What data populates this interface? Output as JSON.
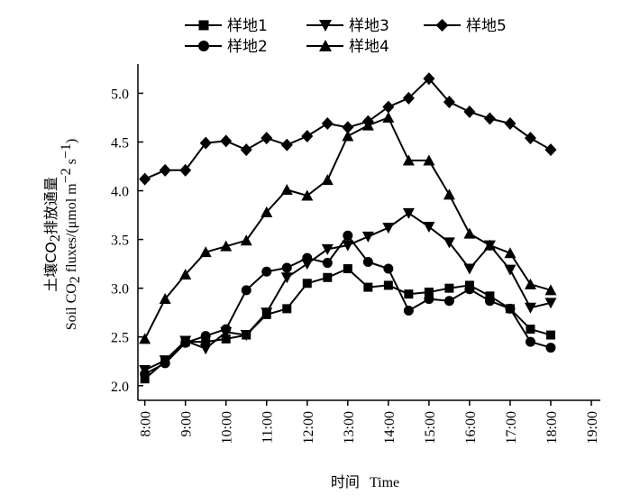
{
  "chart_data": {
    "type": "line",
    "xlabel_cn": "时间",
    "xlabel_en": "Time",
    "ylabel_cn_1": "土壤CO",
    "ylabel_cn_sub": "2",
    "ylabel_cn_2": "排放通量",
    "ylabel_en_1": "Soil CO",
    "ylabel_en_sub": "2",
    "ylabel_en_2": " fluxes/(μmol m",
    "ylabel_en_sup1": "−2",
    "ylabel_en_3": " s",
    "ylabel_en_sup2": "−1",
    "ylabel_en_4": ")",
    "xlim": [
      7.83,
      19.0
    ],
    "ylim": [
      1.85,
      5.3
    ],
    "x_ticks": [
      "8:00",
      "9:00",
      "10:00",
      "11:00",
      "12:00",
      "13:00",
      "14:00",
      "15:00",
      "16:00",
      "17:00",
      "18:00",
      "19:00"
    ],
    "y_ticks": [
      "2.0",
      "2.5",
      "3.0",
      "3.5",
      "4.0",
      "4.5",
      "5.0"
    ],
    "x": [
      "8:00",
      "8:30",
      "9:00",
      "9:30",
      "10:00",
      "10:30",
      "11:00",
      "11:30",
      "12:00",
      "12:30",
      "13:00",
      "13:30",
      "14:00",
      "14:30",
      "15:00",
      "15:30",
      "16:00",
      "16:30",
      "17:00",
      "17:30",
      "18:00"
    ],
    "series": [
      {
        "name": "样地1",
        "marker": "square",
        "values": [
          2.07,
          2.25,
          2.45,
          2.45,
          2.48,
          2.52,
          2.73,
          2.79,
          3.05,
          3.11,
          3.2,
          3.01,
          3.03,
          2.94,
          2.96,
          3.0,
          3.03,
          2.92,
          2.79,
          2.58,
          2.52
        ]
      },
      {
        "name": "样地2",
        "marker": "circle",
        "values": [
          2.12,
          2.23,
          2.44,
          2.51,
          2.58,
          2.98,
          3.17,
          3.21,
          3.31,
          3.26,
          3.54,
          3.27,
          3.2,
          2.77,
          2.89,
          2.87,
          2.99,
          2.87,
          2.79,
          2.45,
          2.39
        ]
      },
      {
        "name": "样地3",
        "marker": "triangle-down",
        "values": [
          2.16,
          2.26,
          2.46,
          2.38,
          2.55,
          2.52,
          2.75,
          3.11,
          3.25,
          3.4,
          3.44,
          3.53,
          3.62,
          3.77,
          3.63,
          3.47,
          3.2,
          3.44,
          3.19,
          2.8,
          2.85
        ]
      },
      {
        "name": "样地4",
        "marker": "triangle-up",
        "values": [
          2.48,
          2.89,
          3.14,
          3.37,
          3.43,
          3.49,
          3.78,
          4.01,
          3.95,
          4.11,
          4.56,
          4.67,
          4.75,
          4.31,
          4.31,
          3.96,
          3.56,
          3.44,
          3.36,
          3.04,
          2.98
        ]
      },
      {
        "name": "样地5",
        "marker": "diamond",
        "values": [
          4.12,
          4.21,
          4.21,
          4.49,
          4.51,
          4.42,
          4.54,
          4.47,
          4.56,
          4.69,
          4.65,
          4.71,
          4.86,
          4.95,
          5.15,
          4.91,
          4.81,
          4.74,
          4.69,
          4.54,
          4.42
        ]
      }
    ],
    "legend_position": "top"
  }
}
